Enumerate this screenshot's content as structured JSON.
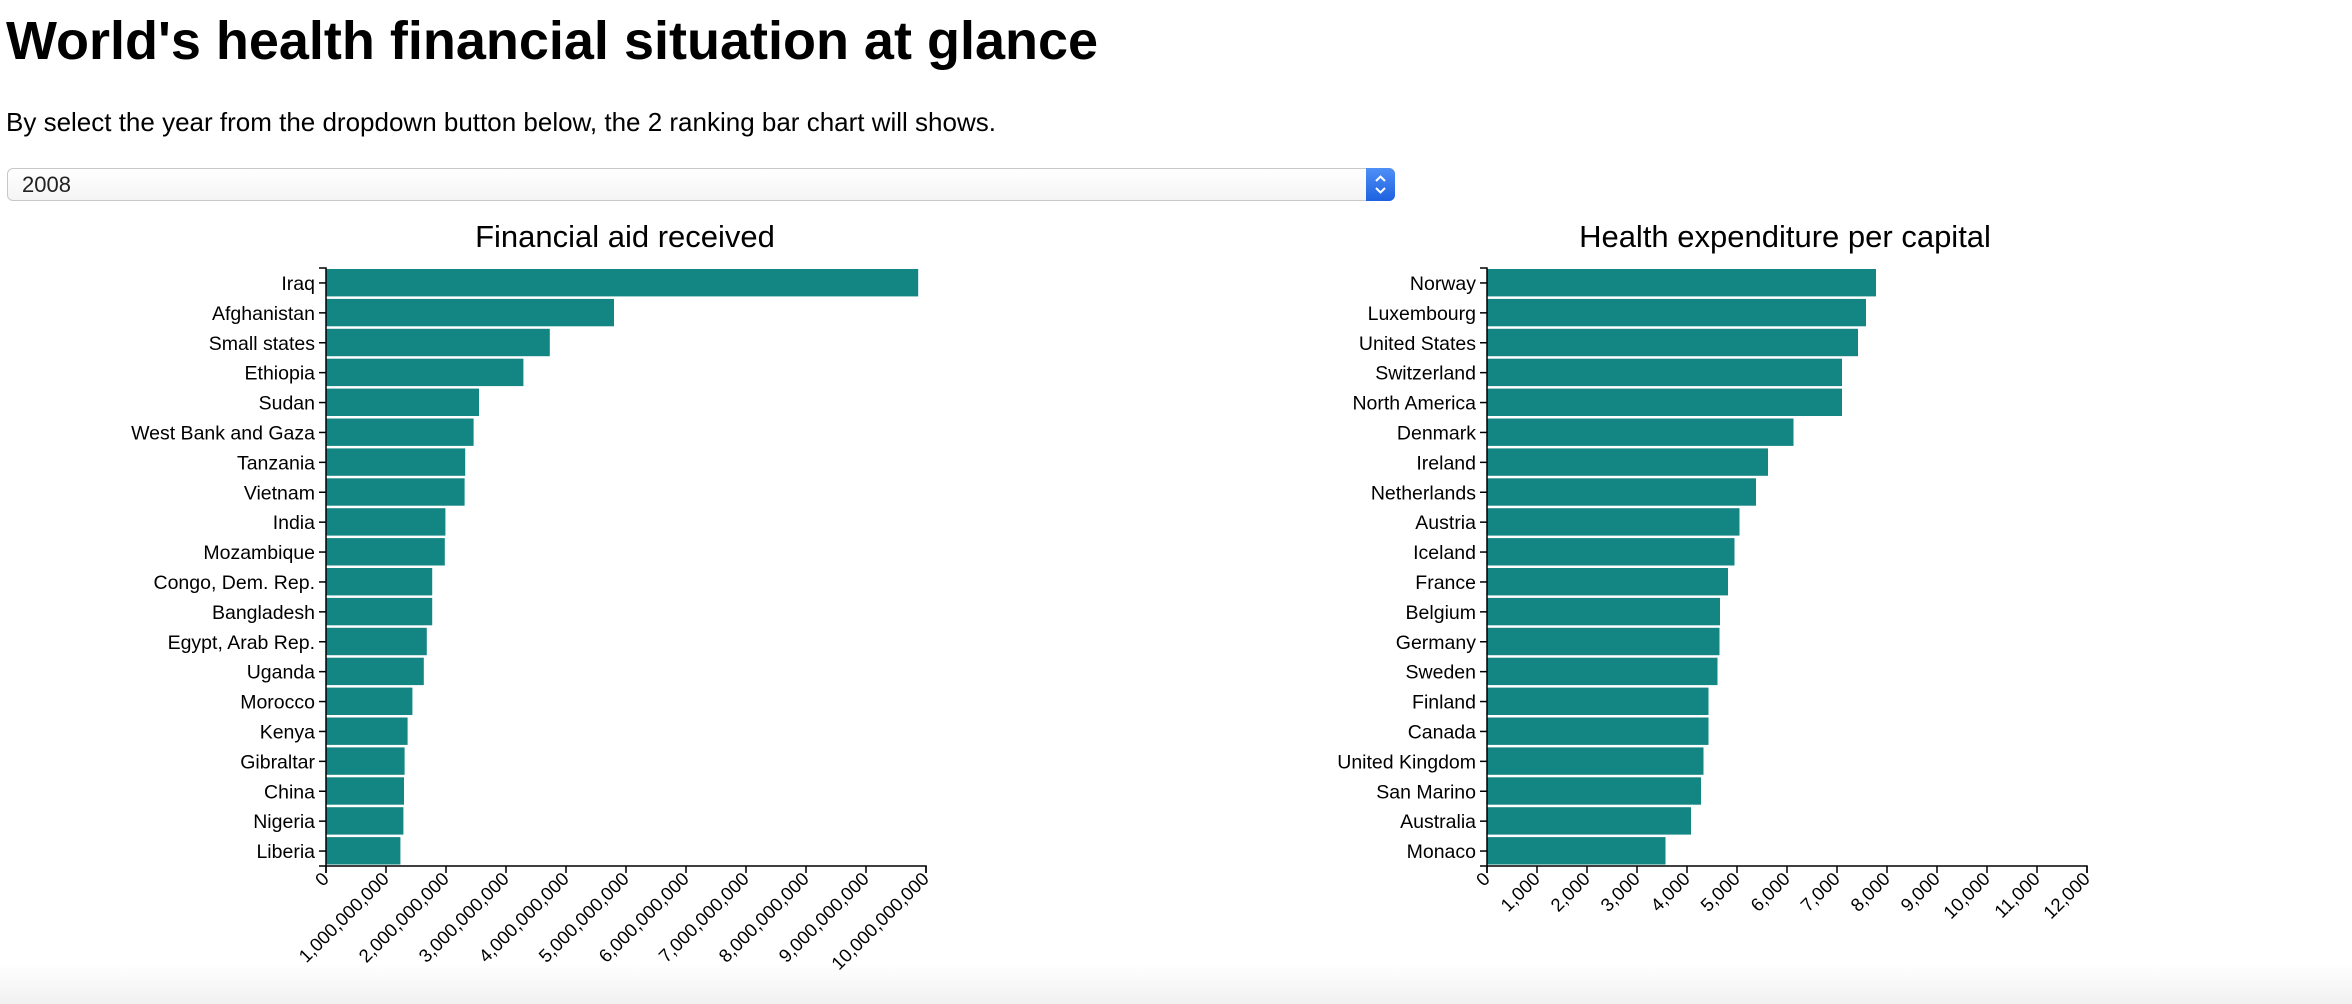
{
  "header": {
    "title": "World's health financial situation at glance",
    "subtitle": "By select the year from the dropdown button below, the 2 ranking bar chart will shows."
  },
  "year_select": {
    "selected": "2008",
    "icon": "chevron-updown-icon"
  },
  "colors": {
    "bar": "#138583",
    "select_arrow": "#2a6ee8"
  },
  "chart_data": [
    {
      "type": "bar",
      "orientation": "horizontal",
      "title": "Financial aid received",
      "categories": [
        "Iraq",
        "Afghanistan",
        "Small states",
        "Ethiopia",
        "Sudan",
        "West Bank and Gaza",
        "Tanzania",
        "Vietnam",
        "India",
        "Mozambique",
        "Congo, Dem. Rep.",
        "Bangladesh",
        "Egypt, Arab Rep.",
        "Uganda",
        "Morocco",
        "Kenya",
        "Gibraltar",
        "China",
        "Nigeria",
        "Liberia"
      ],
      "values": [
        9870000000,
        4800000000,
        3730000000,
        3290000000,
        2550000000,
        2460000000,
        2320000000,
        2310000000,
        1990000000,
        1980000000,
        1770000000,
        1770000000,
        1680000000,
        1630000000,
        1440000000,
        1360000000,
        1310000000,
        1300000000,
        1290000000,
        1240000000
      ],
      "xlim": [
        0,
        10000000000
      ],
      "ticks": [
        "0",
        "1,000,000,000",
        "2,000,000,000",
        "3,000,000,000",
        "4,000,000,000",
        "5,000,000,000",
        "6,000,000,000",
        "7,000,000,000",
        "8,000,000,000",
        "9,000,000,000",
        "10,000,000,000"
      ],
      "grid": false
    },
    {
      "type": "bar",
      "orientation": "horizontal",
      "title": "Health expenditure per capital",
      "categories": [
        "Norway",
        "Luxembourg",
        "United States",
        "Switzerland",
        "North America",
        "Denmark",
        "Ireland",
        "Netherlands",
        "Austria",
        "Iceland",
        "France",
        "Belgium",
        "Germany",
        "Sweden",
        "Finland",
        "Canada",
        "United Kingdom",
        "San Marino",
        "Australia",
        "Monaco"
      ],
      "values": [
        7780,
        7580,
        7420,
        7100,
        7100,
        6130,
        5620,
        5380,
        5050,
        4950,
        4820,
        4660,
        4650,
        4610,
        4430,
        4430,
        4330,
        4280,
        4080,
        3570
      ],
      "xlim": [
        0,
        12000
      ],
      "ticks": [
        "0",
        "1,000",
        "2,000",
        "3,000",
        "4,000",
        "5,000",
        "6,000",
        "7,000",
        "8,000",
        "9,000",
        "10,000",
        "11,000",
        "12,000"
      ],
      "grid": false
    }
  ]
}
